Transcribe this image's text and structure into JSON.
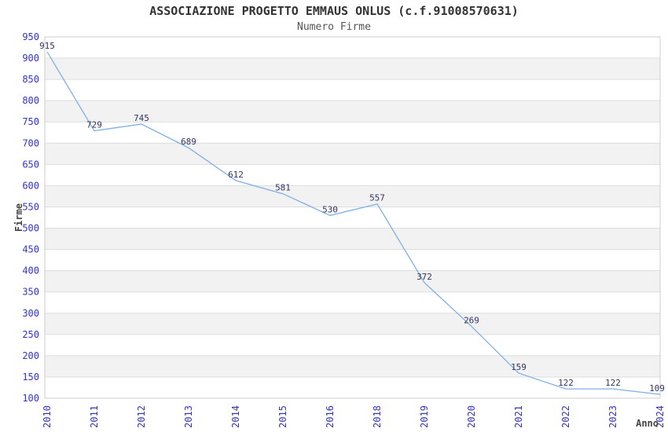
{
  "chart_data": {
    "type": "line",
    "title": "ASSOCIAZIONE PROGETTO EMMAUS ONLUS (c.f.91008570631)",
    "subtitle": "Numero Firme",
    "xlabel": "Anno",
    "ylabel": "Firme",
    "categories": [
      "2010",
      "2011",
      "2012",
      "2013",
      "2014",
      "2015",
      "2016",
      "2018",
      "2019",
      "2020",
      "2021",
      "2022",
      "2023",
      "2024"
    ],
    "values": [
      915,
      729,
      745,
      689,
      612,
      581,
      530,
      557,
      372,
      269,
      159,
      122,
      122,
      109
    ],
    "ylim": [
      100,
      950
    ],
    "ytick_step": 50,
    "ytick_labels": [
      "100",
      "150",
      "200",
      "250",
      "300",
      "350",
      "400",
      "450",
      "500",
      "550",
      "600",
      "650",
      "700",
      "750",
      "800",
      "850",
      "900",
      "950"
    ],
    "grid": true,
    "banded_background": true,
    "legend": "none",
    "colors": {
      "line": "#7FB0E5",
      "tick_label": "#3333CC",
      "data_label": "#333366",
      "band": "#F2F2F2",
      "gridline": "#DDDDDD",
      "plot_border": "#CCCCCC",
      "title": "#333333",
      "subtitle": "#555555",
      "axis_title": "#444444",
      "background": "#FFFFFF"
    }
  }
}
